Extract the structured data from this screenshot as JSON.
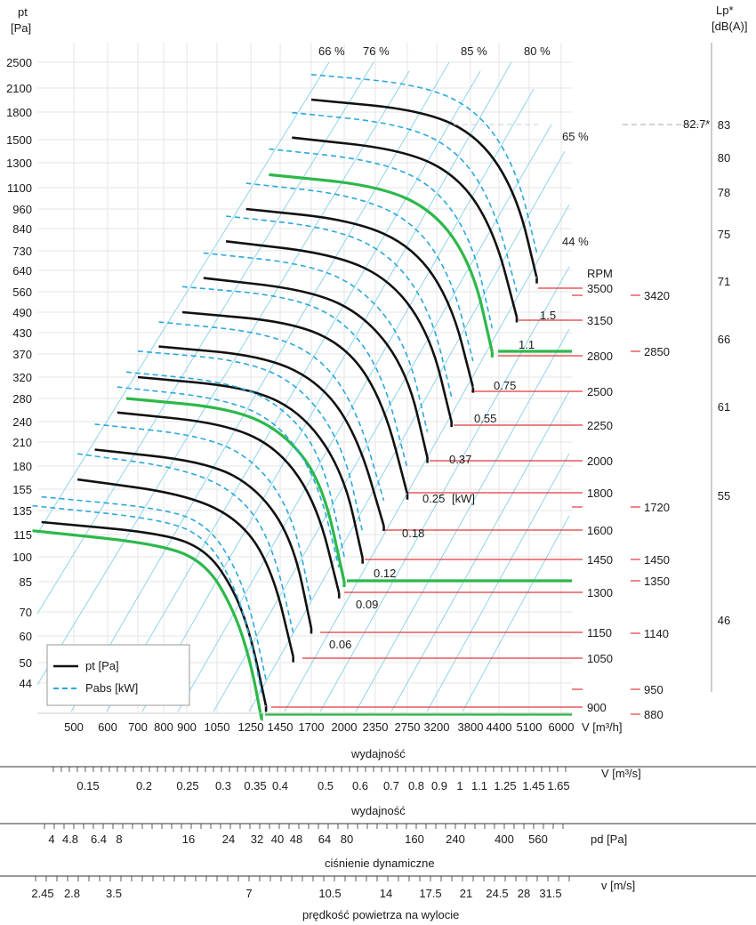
{
  "chart_data": {
    "type": "line",
    "title": "",
    "left_axis": {
      "label": "pt",
      "unit": "[Pa]",
      "ticks": [
        "2500",
        "2100",
        "1800",
        "1500",
        "1300",
        "1100",
        "960",
        "840",
        "730",
        "640",
        "560",
        "490",
        "430",
        "370",
        "320",
        "280",
        "240",
        "210",
        "180",
        "155",
        "135",
        "115",
        "100",
        "85",
        "70",
        "60",
        "50",
        "44"
      ],
      "scale": "log"
    },
    "right_axis": {
      "label": "Lp*",
      "unit": "[dB(A)]",
      "ticks": [
        "83",
        "80",
        "78",
        "75",
        "71",
        "66",
        "61",
        "55",
        "46"
      ],
      "marker_value": "82.7*"
    },
    "x_axis_flow_m3h": {
      "unit": "V [m³/h]",
      "ticks": [
        "500",
        "600",
        "700",
        "800",
        "900",
        "1050",
        "1250",
        "1450",
        "1700",
        "2000",
        "2350",
        "2750",
        "3200",
        "3800",
        "4400",
        "5100",
        "6000"
      ],
      "caption": "wydajność",
      "scale": "log"
    },
    "x_axis_flow_m3s": {
      "unit": "V  [m³/s]",
      "ticks": [
        "0.15",
        "0.2",
        "0.25",
        "0.3",
        "0.35",
        "0.4",
        "0.5",
        "0.6",
        "0.7",
        "0.8",
        "0.9",
        "1",
        "1.1",
        "1.25",
        "1.45",
        "1.65"
      ],
      "caption": "wydajność"
    },
    "x_axis_dynamic_pressure": {
      "unit": "pd  [Pa]",
      "ticks": [
        "4",
        "4.8",
        "6.4",
        "8",
        "16",
        "24",
        "32",
        "40",
        "48",
        "64",
        "80",
        "160",
        "240",
        "400",
        "560"
      ],
      "caption": "ciśnienie dynamiczne"
    },
    "x_axis_velocity": {
      "unit": "v  [m/s]",
      "ticks": [
        "2.45",
        "2.8",
        "3.5",
        "7",
        "10.5",
        "14",
        "17.5",
        "21",
        "24.5",
        "28",
        "31.5"
      ],
      "caption": "prędkość powietrza na wylocie"
    },
    "rpm_header": "RPM",
    "rpm_left": [
      "3500",
      "3150",
      "2800",
      "2500",
      "2250",
      "2000",
      "1800",
      "1600",
      "1450",
      "1300",
      "1150",
      "1050",
      "900"
    ],
    "rpm_right": [
      "3420",
      "2850",
      "1720",
      "1450",
      "1350",
      "1140",
      "950",
      "880"
    ],
    "efficiency_lines": [
      "66 %",
      "76 %",
      "85 %",
      "80 %",
      "65 %",
      "44 %"
    ],
    "power_labels_kw": [
      "1.5",
      "1.1",
      "0.75",
      "0.55",
      "0.37",
      "0.25",
      "0.18",
      "0.12",
      "0.09",
      "0.06"
    ],
    "power_unit": "[kW]",
    "legend": [
      {
        "name": "pt [Pa]",
        "style": "solid",
        "color": "#111111"
      },
      {
        "name": "Pabs [kW]",
        "style": "dashed",
        "color": "#2aa8dc"
      }
    ],
    "series": [
      {
        "rpm": 880,
        "highlight": true,
        "points": [
          [
            400,
            118
          ],
          [
            800,
            108
          ],
          [
            1000,
            95
          ],
          [
            1150,
            70
          ],
          [
            1250,
            50
          ],
          [
            1320,
            35
          ]
        ]
      },
      {
        "rpm": 900,
        "highlight": false,
        "points": [
          [
            420,
            125
          ],
          [
            800,
            116
          ],
          [
            1000,
            104
          ],
          [
            1150,
            80
          ],
          [
            1250,
            60
          ],
          [
            1350,
            38
          ]
        ]
      },
      {
        "rpm": 1050,
        "highlight": false,
        "points": [
          [
            510,
            165
          ],
          [
            900,
            150
          ],
          [
            1200,
            125
          ],
          [
            1400,
            90
          ],
          [
            1550,
            52
          ]
        ]
      },
      {
        "rpm": 1150,
        "highlight": false,
        "points": [
          [
            560,
            200
          ],
          [
            1000,
            185
          ],
          [
            1300,
            155
          ],
          [
            1550,
            110
          ],
          [
            1700,
            63
          ]
        ]
      },
      {
        "rpm": 1300,
        "highlight": false,
        "points": [
          [
            630,
            255
          ],
          [
            1100,
            237
          ],
          [
            1450,
            200
          ],
          [
            1750,
            140
          ],
          [
            1950,
            79
          ]
        ]
      },
      {
        "rpm": 1350,
        "highlight": true,
        "points": [
          [
            660,
            280
          ],
          [
            1150,
            262
          ],
          [
            1500,
            220
          ],
          [
            1800,
            160
          ],
          [
            2000,
            85
          ]
        ]
      },
      {
        "rpm": 1450,
        "highlight": false,
        "points": [
          [
            700,
            320
          ],
          [
            1250,
            300
          ],
          [
            1650,
            250
          ],
          [
            2000,
            170
          ],
          [
            2200,
            99
          ]
        ]
      },
      {
        "rpm": 1600,
        "highlight": false,
        "points": [
          [
            780,
            390
          ],
          [
            1350,
            365
          ],
          [
            1800,
            305
          ],
          [
            2150,
            215
          ],
          [
            2450,
            122
          ]
        ]
      },
      {
        "rpm": 1800,
        "highlight": false,
        "points": [
          [
            880,
            490
          ],
          [
            1550,
            460
          ],
          [
            2050,
            385
          ],
          [
            2450,
            270
          ],
          [
            2750,
            150
          ]
        ]
      },
      {
        "rpm": 2000,
        "highlight": false,
        "points": [
          [
            980,
            610
          ],
          [
            1700,
            565
          ],
          [
            2250,
            475
          ],
          [
            2750,
            330
          ],
          [
            3050,
            190
          ]
        ]
      },
      {
        "rpm": 2250,
        "highlight": false,
        "points": [
          [
            1100,
            775
          ],
          [
            1900,
            715
          ],
          [
            2550,
            600
          ],
          [
            3100,
            420
          ],
          [
            3450,
            240
          ]
        ]
      },
      {
        "rpm": 2500,
        "highlight": false,
        "points": [
          [
            1220,
            960
          ],
          [
            2100,
            890
          ],
          [
            2850,
            745
          ],
          [
            3450,
            520
          ],
          [
            3850,
            300
          ]
        ]
      },
      {
        "rpm": 2800,
        "highlight": true,
        "points": [
          [
            1370,
            1200
          ],
          [
            2400,
            1115
          ],
          [
            3200,
            935
          ],
          [
            3850,
            650
          ],
          [
            4250,
            375
          ]
        ]
      },
      {
        "rpm": 3150,
        "highlight": false,
        "points": [
          [
            1540,
            1520
          ],
          [
            2700,
            1410
          ],
          [
            3600,
            1180
          ],
          [
            4300,
            820
          ],
          [
            4800,
            475
          ]
        ]
      },
      {
        "rpm": 3500,
        "highlight": false,
        "points": [
          [
            1700,
            1950
          ],
          [
            3000,
            1820
          ],
          [
            4000,
            1520
          ],
          [
            4800,
            1050
          ],
          [
            5300,
            610
          ]
        ]
      }
    ]
  }
}
